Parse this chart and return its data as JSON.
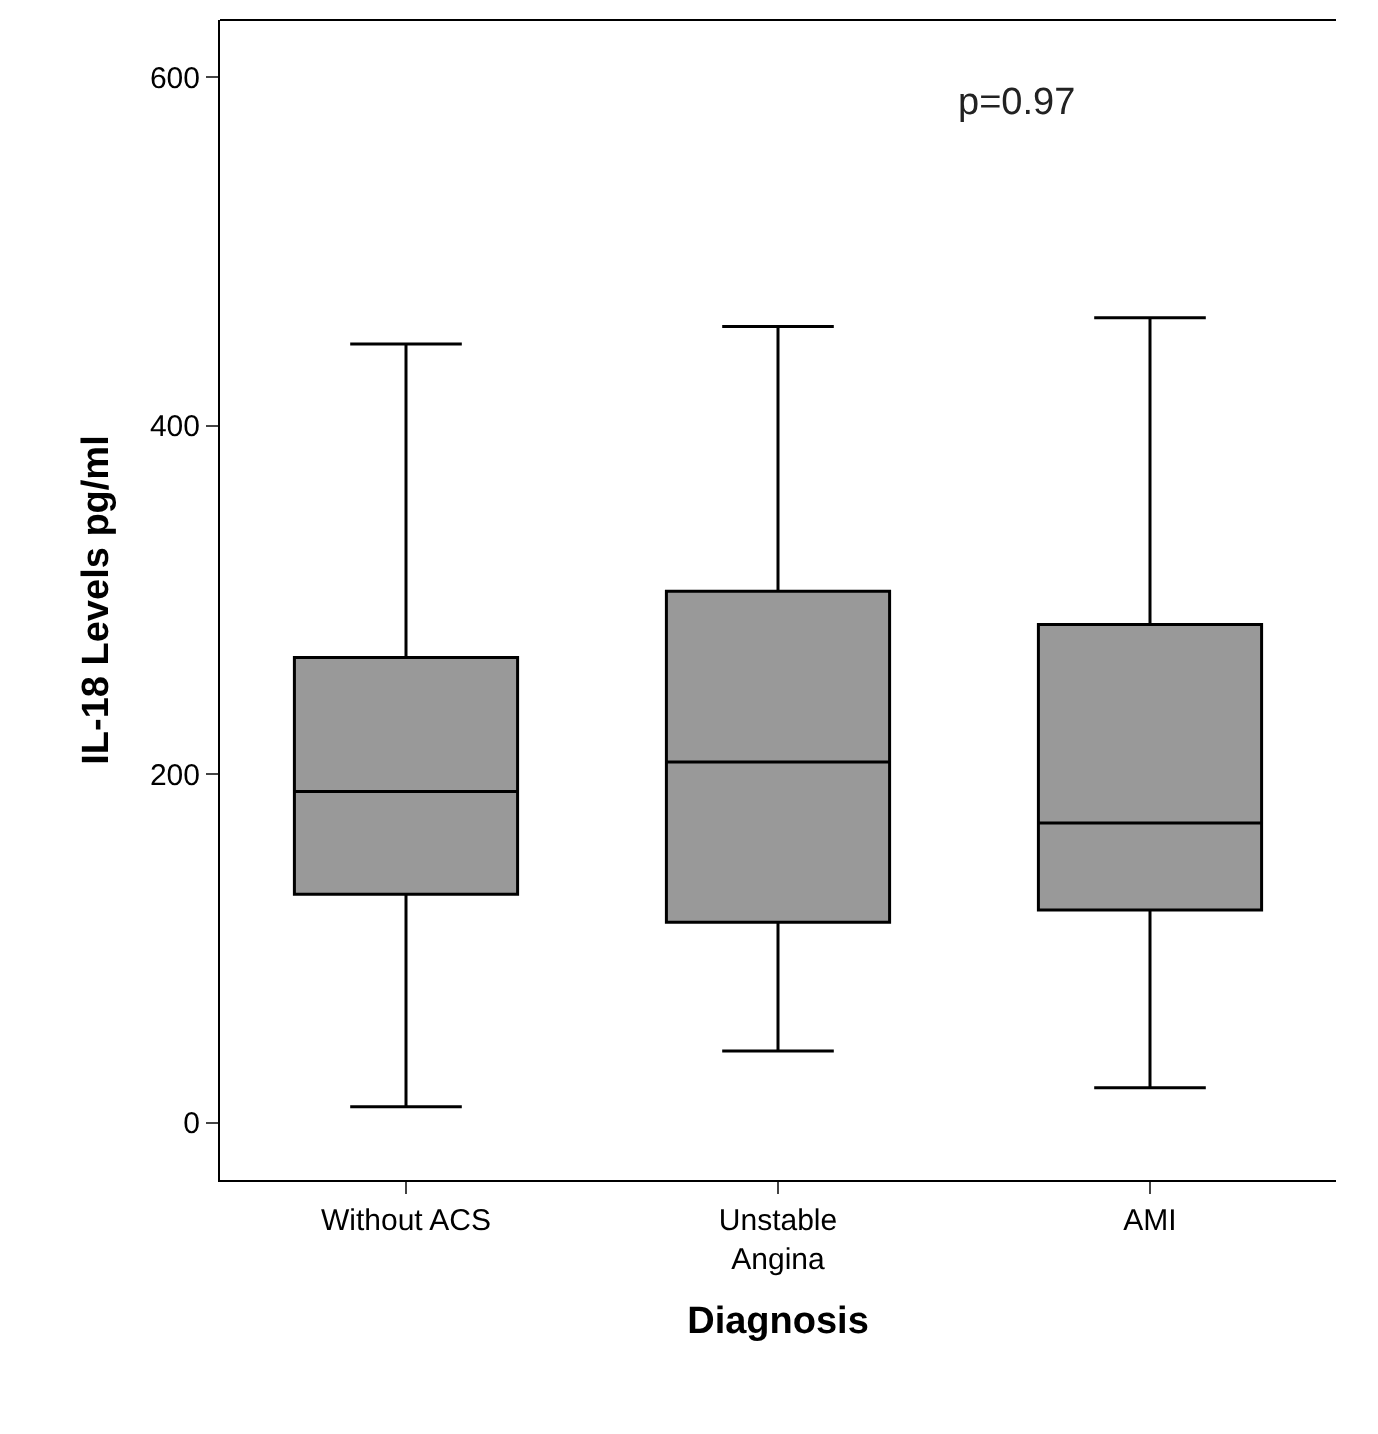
{
  "chart_data": {
    "type": "box",
    "xlabel": "Diagnosis",
    "ylabel": "IL-18 Levels pg/ml",
    "categories": [
      "Without ACS",
      "Unstable Angina",
      "AMI"
    ],
    "boxes": [
      {
        "low": 9,
        "q1": 131,
        "median": 190,
        "q3": 267,
        "high": 447
      },
      {
        "low": 41,
        "q1": 115,
        "median": 207,
        "q3": 305,
        "high": 457
      },
      {
        "low": 20,
        "q1": 122,
        "median": 172,
        "q3": 286,
        "high": 462
      }
    ],
    "color": "#999999",
    "ylim": [
      -33,
      633
    ],
    "yticks": [
      0,
      200,
      400,
      600
    ],
    "annotations": [
      "p=0.97"
    ]
  }
}
